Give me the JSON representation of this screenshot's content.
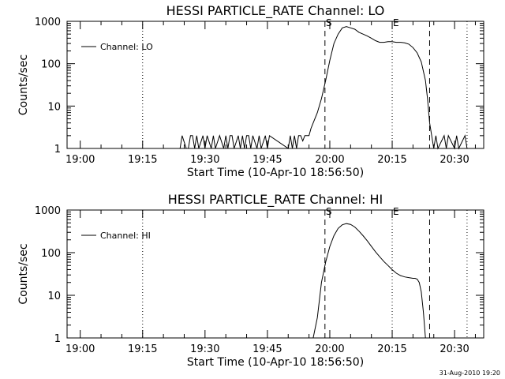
{
  "footer_date": "31-Aug-2010 19:20",
  "chart_data": [
    {
      "type": "line",
      "title": "HESSI PARTICLE_RATE Channel: LO",
      "xlabel": "Start Time (10-Apr-10 18:56:50)",
      "ylabel": "Counts/sec",
      "y_scale": "log",
      "ylim": [
        1,
        1000
      ],
      "xlim": [
        "18:56:50",
        "20:37:00"
      ],
      "x_tick_labels": [
        "19:00",
        "19:15",
        "19:30",
        "19:45",
        "20:00",
        "20:15",
        "20:30"
      ],
      "y_tick_labels": [
        "1",
        "10",
        "100",
        "1000"
      ],
      "legend": {
        "entry": "Channel: LO",
        "position": "top-left"
      },
      "grid": false,
      "markers": [
        {
          "label": "S",
          "time": "19:58:50",
          "style": "dashed"
        },
        {
          "label": "E",
          "time": "20:15:00",
          "style": "dotted"
        }
      ],
      "vlines": [
        {
          "time": "19:15:00",
          "style": "dotted"
        },
        {
          "time": "20:24:00",
          "style": "dashed"
        },
        {
          "time": "20:33:00",
          "style": "dotted"
        }
      ],
      "series": [
        {
          "name": "Channel: LO",
          "x": [
            "19:24:00",
            "19:24:30",
            "19:25:30",
            "19:26:00",
            "19:26:30",
            "19:27:00",
            "19:27:30",
            "19:28:00",
            "19:28:30",
            "19:29:30",
            "19:30:00",
            "19:30:30",
            "19:31:30",
            "19:32:00",
            "19:32:30",
            "19:33:30",
            "19:34:30",
            "19:35:00",
            "19:35:30",
            "19:36:00",
            "19:36:30",
            "19:37:00",
            "19:38:00",
            "19:38:30",
            "19:39:00",
            "19:39:30",
            "19:40:00",
            "19:40:30",
            "19:41:00",
            "19:41:30",
            "19:42:30",
            "19:43:00",
            "19:43:30",
            "19:44:30",
            "19:45:00",
            "19:45:30",
            "19:50:00",
            "19:50:30",
            "19:51:00",
            "19:51:30",
            "19:52:00",
            "19:52:30",
            "19:53:00",
            "19:53:30",
            "19:54:00",
            "19:54:30",
            "19:55:00",
            "19:55:30",
            "19:56:00",
            "19:57:00",
            "19:58:00",
            "19:59:00",
            "20:00:00",
            "20:01:00",
            "20:02:00",
            "20:03:00",
            "20:04:00",
            "20:05:00",
            "20:06:00",
            "20:07:00",
            "20:08:00",
            "20:09:00",
            "20:10:00",
            "20:11:00",
            "20:12:00",
            "20:13:00",
            "20:14:00",
            "20:15:00",
            "20:16:00",
            "20:17:00",
            "20:18:00",
            "20:19:00",
            "20:20:00",
            "20:21:00",
            "20:22:00",
            "20:23:00",
            "20:23:30",
            "20:24:00",
            "20:25:00",
            "20:25:30",
            "20:26:00",
            "20:27:30",
            "20:28:00",
            "20:28:30",
            "20:30:00",
            "20:30:30",
            "20:31:00",
            "20:32:30",
            "20:33:00"
          ],
          "values": [
            1,
            2,
            1,
            1,
            2,
            2,
            1,
            2,
            1,
            2,
            1,
            2,
            1,
            2,
            1,
            2,
            1,
            2,
            1,
            2,
            2,
            1,
            2,
            1,
            2,
            1,
            2,
            2,
            1,
            2,
            1,
            2,
            1,
            2,
            1,
            2,
            1,
            2,
            1,
            2,
            1,
            2,
            2,
            1.5,
            2,
            2,
            2,
            3,
            4,
            7,
            15,
            40,
            120,
            300,
            500,
            700,
            750,
            700,
            650,
            550,
            500,
            450,
            400,
            350,
            320,
            320,
            330,
            330,
            320,
            320,
            310,
            290,
            240,
            180,
            110,
            40,
            15,
            4,
            1,
            2,
            1,
            2,
            1,
            2,
            1,
            2,
            1,
            2,
            1
          ]
        }
      ]
    },
    {
      "type": "line",
      "title": "HESSI PARTICLE_RATE Channel: HI",
      "xlabel": "Start Time (10-Apr-10 18:56:50)",
      "ylabel": "Counts/sec",
      "y_scale": "log",
      "ylim": [
        1,
        1000
      ],
      "xlim": [
        "18:56:50",
        "20:37:00"
      ],
      "x_tick_labels": [
        "19:00",
        "19:15",
        "19:30",
        "19:45",
        "20:00",
        "20:15",
        "20:30"
      ],
      "y_tick_labels": [
        "1",
        "10",
        "100",
        "1000"
      ],
      "legend": {
        "entry": "Channel: HI",
        "position": "top-left"
      },
      "grid": false,
      "markers": [
        {
          "label": "S",
          "time": "19:58:50",
          "style": "dashed"
        },
        {
          "label": "E",
          "time": "20:15:00",
          "style": "dotted"
        }
      ],
      "vlines": [
        {
          "time": "19:15:00",
          "style": "dotted"
        },
        {
          "time": "20:24:00",
          "style": "dashed"
        },
        {
          "time": "20:33:00",
          "style": "dotted"
        }
      ],
      "series": [
        {
          "name": "Channel: HI",
          "x": [
            "19:56:00",
            "19:57:00",
            "19:58:00",
            "19:59:00",
            "20:00:00",
            "20:01:00",
            "20:02:00",
            "20:03:00",
            "20:04:00",
            "20:05:00",
            "20:06:00",
            "20:07:00",
            "20:08:00",
            "20:09:00",
            "20:10:00",
            "20:11:00",
            "20:12:00",
            "20:13:00",
            "20:14:00",
            "20:15:00",
            "20:16:00",
            "20:17:00",
            "20:18:00",
            "20:19:00",
            "20:20:00",
            "20:20:30",
            "20:21:00",
            "20:21:30",
            "20:22:00",
            "20:22:30",
            "20:23:00"
          ],
          "values": [
            1,
            3,
            20,
            60,
            140,
            250,
            370,
            450,
            480,
            460,
            400,
            320,
            250,
            190,
            140,
            105,
            80,
            62,
            50,
            40,
            33,
            29,
            27,
            26,
            25,
            25,
            24,
            20,
            12,
            4,
            1
          ]
        }
      ]
    }
  ]
}
